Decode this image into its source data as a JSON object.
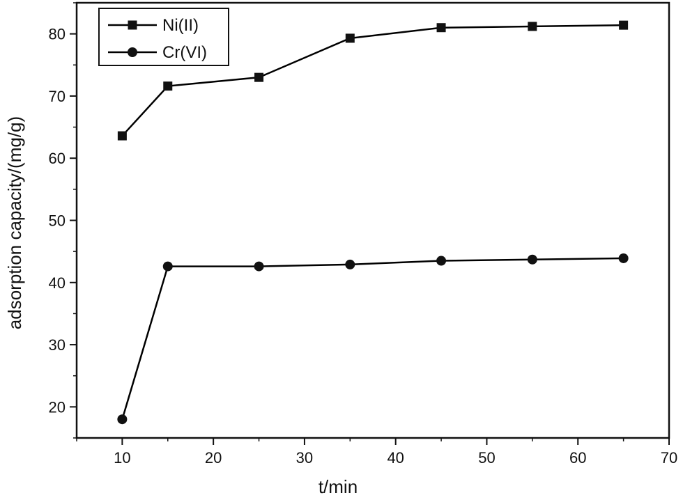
{
  "chart_data": {
    "type": "line",
    "title": "",
    "xlabel": "t/min",
    "ylabel": "adsorption capacity/(mg/g)",
    "xlim": [
      5,
      70
    ],
    "ylim": [
      15,
      85
    ],
    "xticks": [
      10,
      20,
      30,
      40,
      50,
      60,
      70
    ],
    "yticks": [
      20,
      30,
      40,
      50,
      60,
      70,
      80
    ],
    "grid": false,
    "legend_position": "top-left",
    "series": [
      {
        "name": "Ni(II)",
        "marker": "square",
        "color": "#000000",
        "x": [
          10,
          15,
          25,
          35,
          45,
          55,
          65
        ],
        "y": [
          63.6,
          71.6,
          73.0,
          79.3,
          81.0,
          81.2,
          81.4
        ]
      },
      {
        "name": "Cr(VI)",
        "marker": "circle",
        "color": "#000000",
        "x": [
          10,
          15,
          25,
          35,
          45,
          55,
          65
        ],
        "y": [
          18.0,
          42.6,
          42.6,
          42.9,
          43.5,
          43.7,
          43.9
        ]
      }
    ]
  }
}
